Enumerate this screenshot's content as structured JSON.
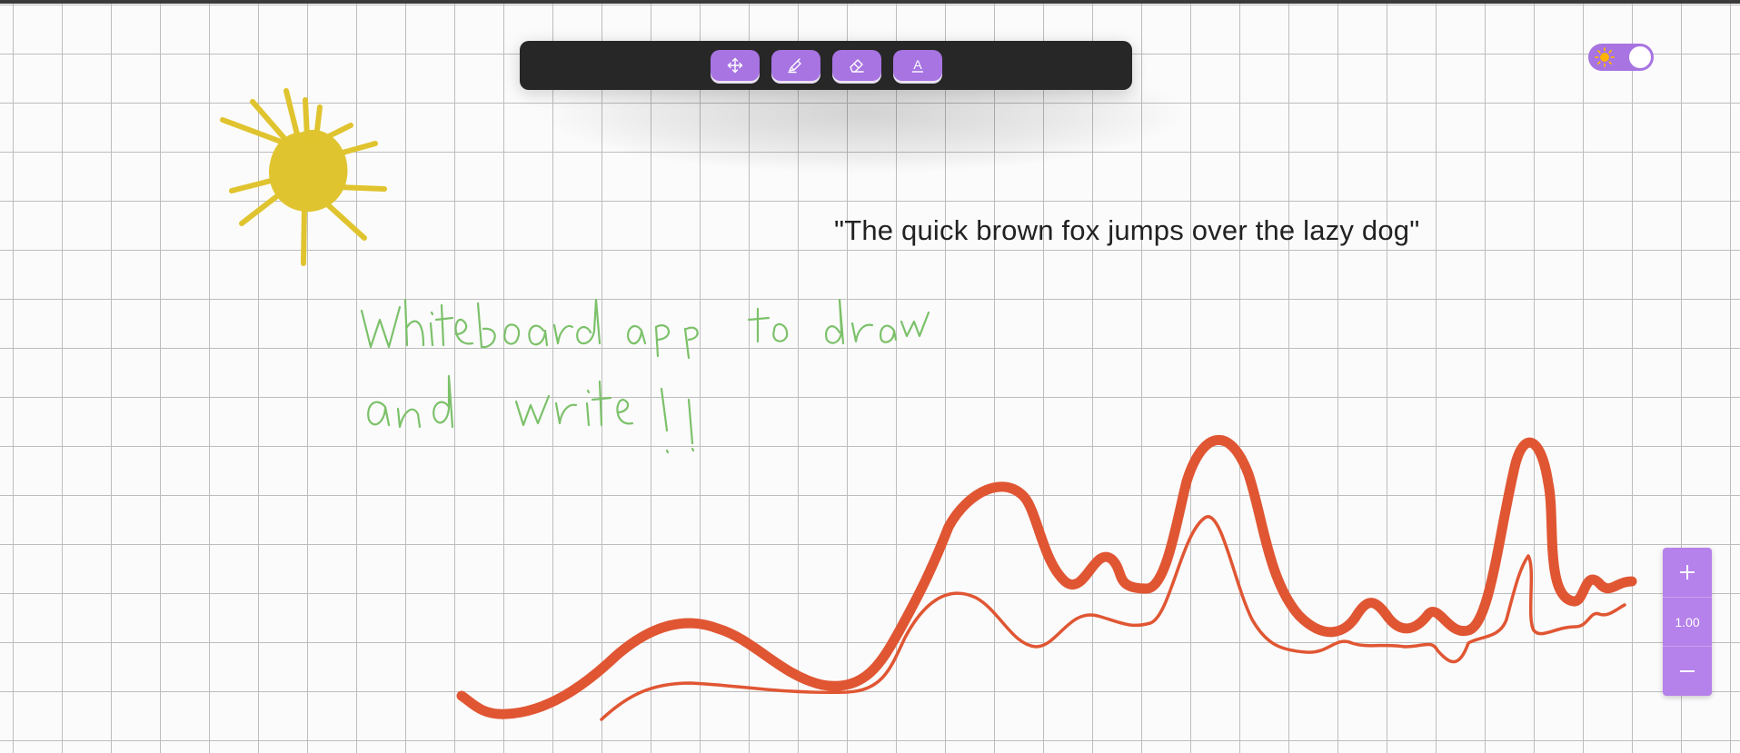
{
  "canvas": {
    "background": "#fbfbfb",
    "grid_color": "#bdbdbd"
  },
  "toolbar": {
    "background": "#272727",
    "tools": [
      {
        "name": "move-tool",
        "icon": "move-arrows-icon"
      },
      {
        "name": "highlighter-tool",
        "icon": "highlighter-icon"
      },
      {
        "name": "eraser-tool",
        "icon": "eraser-icon"
      },
      {
        "name": "text-tool",
        "icon": "text-a-icon",
        "glyph": "A"
      }
    ],
    "accent": "#a774e2"
  },
  "theme_toggle": {
    "mode": "light",
    "icon": "sun-icon",
    "accent": "#a774e2"
  },
  "text_elements": {
    "quote": "\"The quick brown fox jumps over the lazy dog\""
  },
  "drawings": {
    "sun": {
      "color": "#e0c42f",
      "kind": "sun-sketch"
    },
    "handwriting": {
      "color": "#7cc16a",
      "lines": [
        "Whiteboard app to draw",
        "and write !!"
      ]
    },
    "waves": {
      "color": "#e05633",
      "kind": "two-squiggly-lines"
    }
  },
  "zoom": {
    "zoom_in_label": "+",
    "level": "1.00",
    "zoom_out_label": "−",
    "color": "#b581ea"
  }
}
